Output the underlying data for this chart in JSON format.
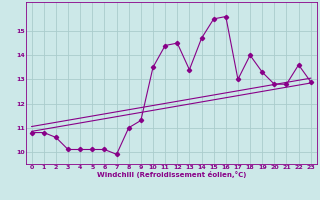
{
  "title": "",
  "xlabel": "Windchill (Refroidissement éolien,°C)",
  "bg_color": "#cce8e8",
  "line_color": "#880088",
  "grid_color": "#aacccc",
  "xlim": [
    -0.5,
    23.5
  ],
  "ylim": [
    9.5,
    16.2
  ],
  "xticks": [
    0,
    1,
    2,
    3,
    4,
    5,
    6,
    7,
    8,
    9,
    10,
    11,
    12,
    13,
    14,
    15,
    16,
    17,
    18,
    19,
    20,
    21,
    22,
    23
  ],
  "yticks": [
    10,
    11,
    12,
    13,
    14,
    15
  ],
  "series1_x": [
    0,
    1,
    2,
    3,
    4,
    5,
    6,
    7,
    8,
    9,
    10,
    11,
    12,
    13,
    14,
    15,
    16,
    17,
    18,
    19,
    20,
    21,
    22,
    23
  ],
  "series1_y": [
    10.8,
    10.8,
    10.6,
    10.1,
    10.1,
    10.1,
    10.1,
    9.9,
    11.0,
    11.3,
    13.5,
    14.4,
    14.5,
    13.4,
    14.7,
    15.5,
    15.6,
    13.0,
    14.0,
    13.3,
    12.8,
    12.8,
    13.6,
    12.9
  ],
  "series2_x": [
    0,
    23
  ],
  "series2_y": [
    10.85,
    12.85
  ],
  "series3_x": [
    0,
    23
  ],
  "series3_y": [
    11.05,
    13.05
  ],
  "marker": "D",
  "markersize": 2.2,
  "linewidth": 0.8,
  "tick_fontsize": 4.5,
  "xlabel_fontsize": 5.0
}
